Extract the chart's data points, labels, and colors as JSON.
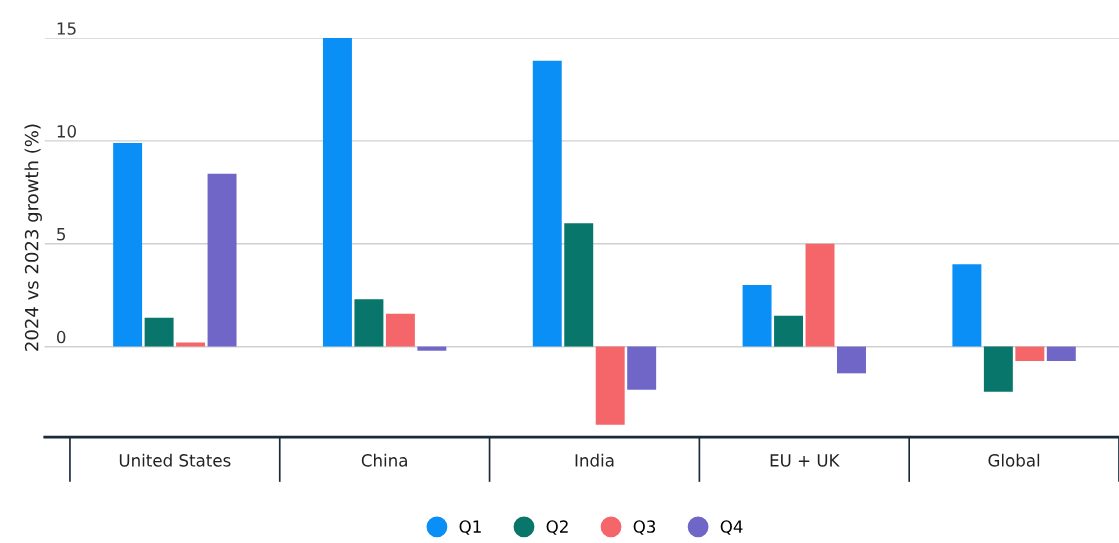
{
  "chart_data": {
    "type": "bar",
    "ylabel": "2024 vs 2023 growth (%)",
    "categories": [
      "United States",
      "China",
      "India",
      "EU + UK",
      "Global"
    ],
    "series": [
      {
        "name": "Q1",
        "color": "#0a8ff7",
        "values": [
          9.9,
          15.0,
          13.9,
          3.0,
          4.0
        ]
      },
      {
        "name": "Q2",
        "color": "#08766a",
        "values": [
          1.4,
          2.3,
          6.0,
          1.5,
          -2.2
        ]
      },
      {
        "name": "Q3",
        "color": "#f4666a",
        "values": [
          0.2,
          1.6,
          -3.8,
          5.0,
          -0.7
        ]
      },
      {
        "name": "Q4",
        "color": "#6f66c8",
        "values": [
          8.4,
          -0.2,
          -2.1,
          -1.3,
          -0.7
        ]
      }
    ],
    "ylim": [
      -4.4,
      15
    ],
    "yticks": [
      0,
      5,
      10,
      15
    ],
    "grid": "y",
    "legend": "bottom"
  }
}
